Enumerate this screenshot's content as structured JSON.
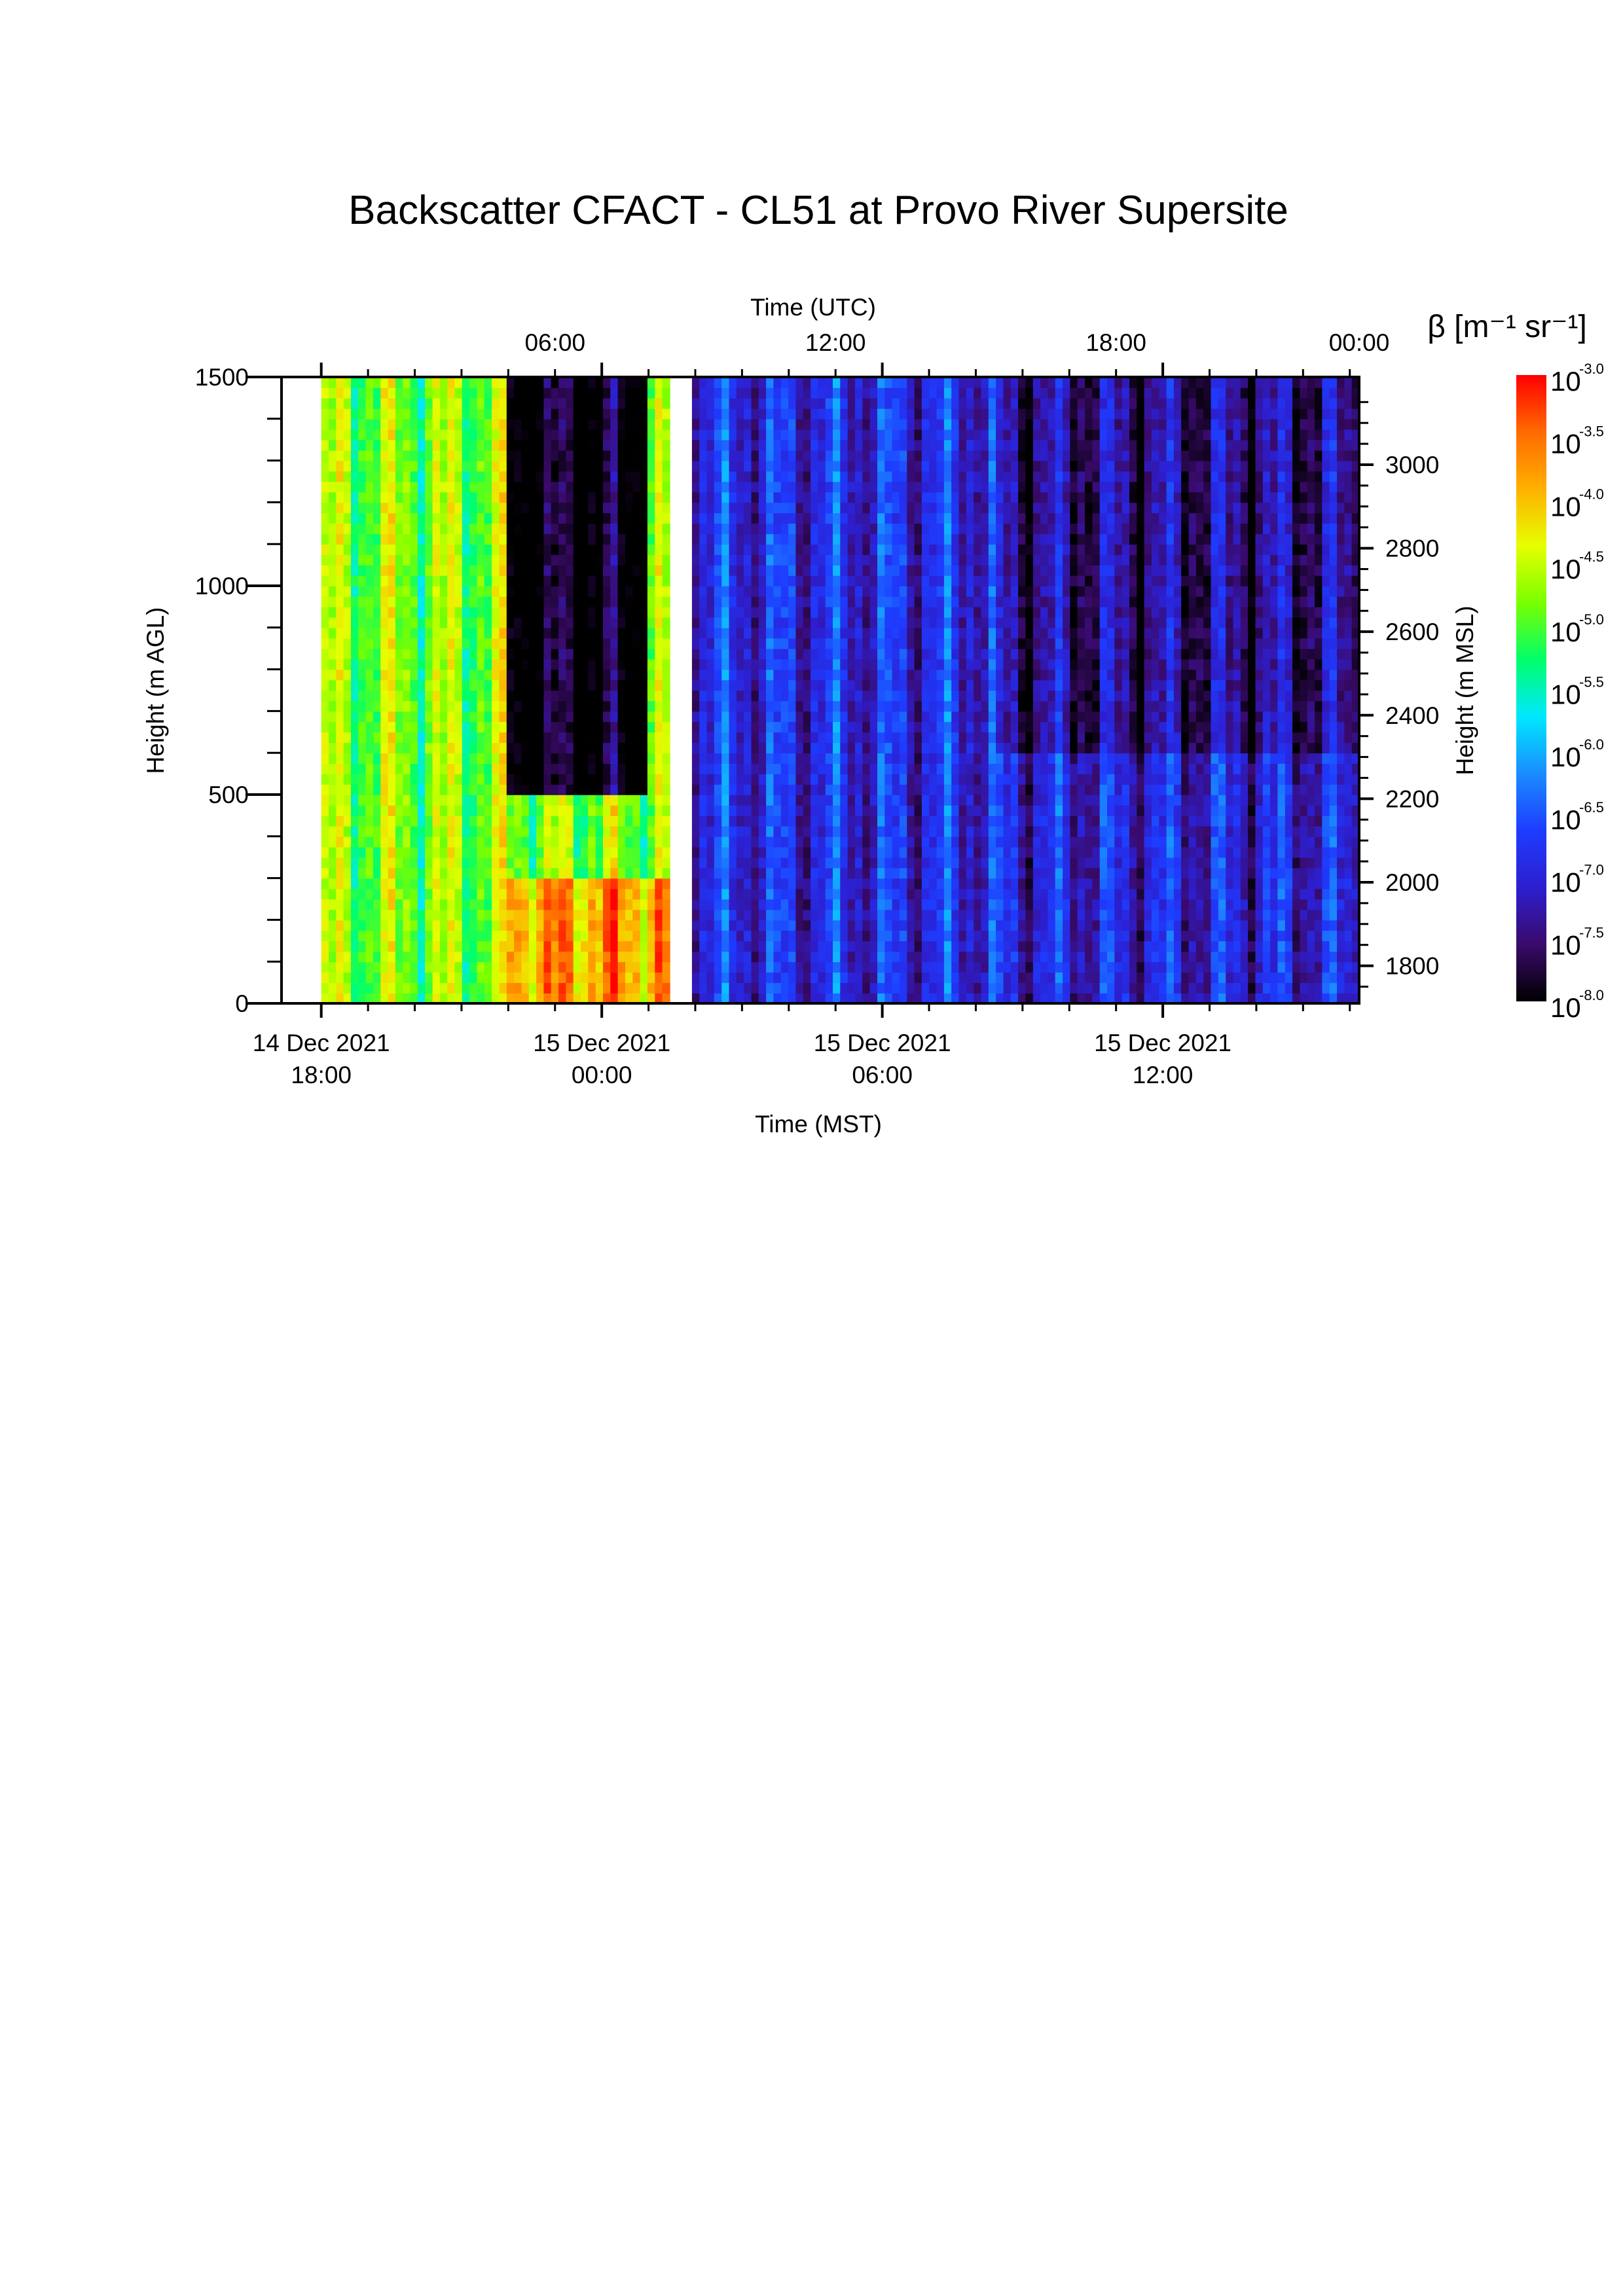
{
  "chart_data": {
    "type": "heatmap",
    "title": "Backscatter CFACT - CL51 at Provo River Supersite",
    "x_bottom": {
      "label": "Time (MST)",
      "ticks": [
        {
          "line1": "14 Dec 2021",
          "line2": "18:00"
        },
        {
          "line1": "15 Dec 2021",
          "line2": "00:00"
        },
        {
          "line1": "15 Dec 2021",
          "line2": "06:00"
        },
        {
          "line1": "15 Dec 2021",
          "line2": "12:00"
        }
      ],
      "minor_ticks_hours": 1,
      "range_hours_from_start": [
        -0.85,
        22.2
      ]
    },
    "x_top": {
      "label": "Time (UTC)",
      "ticks": [
        "06:00",
        "12:00",
        "18:00",
        "00:00"
      ]
    },
    "y_left": {
      "label": "Height (m AGL)",
      "ticks": [
        0,
        500,
        1000,
        1500
      ],
      "range": [
        0,
        1500
      ]
    },
    "y_right": {
      "label": "Height (m MSL)",
      "ticks": [
        1800,
        2000,
        2200,
        2400,
        2600,
        2800,
        3000
      ],
      "range": [
        1710,
        3210
      ]
    },
    "colorbar": {
      "label": "β [m⁻¹ sr⁻¹]",
      "base": "10",
      "exponents": [
        "-3.0",
        "-3.5",
        "-4.0",
        "-4.5",
        "-5.0",
        "-5.5",
        "-6.0",
        "-6.5",
        "-7.0",
        "-7.5",
        "-8.0"
      ],
      "range_log10": [
        -8.0,
        -3.0
      ],
      "colors": [
        "#000000",
        "#3a0a6b",
        "#2d1fcf",
        "#1e3cff",
        "#1a8cff",
        "#00e8ff",
        "#00ff6a",
        "#7aff00",
        "#e6ff00",
        "#ffb000",
        "#ff6a00",
        "#ff0000"
      ]
    },
    "description_features": [
      {
        "period_hours": [
          0,
          7.5
        ],
        "height_range": [
          0,
          1500
        ],
        "log10_beta": -4.8,
        "pattern": "vertical green/yellow plumes"
      },
      {
        "period_hours": [
          4,
          7.5
        ],
        "height_range": [
          0,
          300
        ],
        "log10_beta": -3.8,
        "pattern": "orange/red near-surface layer"
      },
      {
        "period_hours": [
          4,
          7
        ],
        "height_range": [
          500,
          1500
        ],
        "log10_beta": -8.0,
        "pattern": "clear black gap"
      },
      {
        "period_hours": [
          8,
          14.5
        ],
        "height_range": [
          0,
          1500
        ],
        "log10_beta": -6.9,
        "pattern": "blue with cyan/green streaks"
      },
      {
        "period_hours": [
          14.5,
          23
        ],
        "height_range": [
          600,
          1500
        ],
        "log10_beta": -7.4,
        "pattern": "noisy purple/black"
      },
      {
        "period_hours": [
          14.5,
          23
        ],
        "height_range": [
          0,
          600
        ],
        "log10_beta": -7.0,
        "pattern": "blue"
      }
    ]
  }
}
